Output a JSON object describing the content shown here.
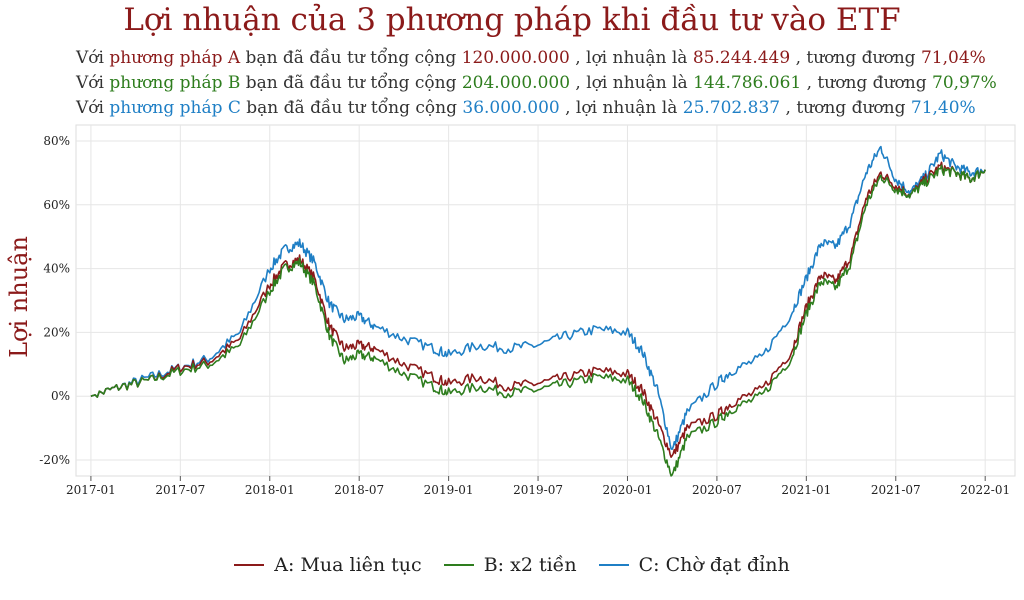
{
  "title": "Lợi nhuận của 3 phương pháp khi đầu tư vào ETF",
  "summaries": [
    {
      "prefix": "Với",
      "method": "phương pháp A",
      "t1": "bạn đã đầu tư tổng cộng",
      "invested": "120.000.000",
      "t2": ", lợi nhuận là",
      "profit": "85.244.449",
      "t3": ", tương đương",
      "pct": "71,04%"
    },
    {
      "prefix": "Với",
      "method": "phương pháp B",
      "t1": "bạn đã đầu tư tổng cộng",
      "invested": "204.000.000",
      "t2": ", lợi nhuận là",
      "profit": "144.786.061",
      "t3": ", tương đương",
      "pct": "70,97%"
    },
    {
      "prefix": "Với",
      "method": "phương pháp C",
      "t1": "bạn đã đầu tư tổng cộng",
      "invested": "36.000.000",
      "t2": ", lợi nhuận là",
      "profit": "25.702.837",
      "t3": ", tương đương",
      "pct": "71,40%"
    }
  ],
  "colors": {
    "A": "#8b1a1a",
    "B": "#2e7d1e",
    "C": "#1f7fc5"
  },
  "chart_data": {
    "type": "line",
    "ylabel": "Lợi nhuận",
    "xlabel": "",
    "x_ticks": [
      "2017-01",
      "2017-07",
      "2018-01",
      "2018-07",
      "2019-01",
      "2019-07",
      "2020-01",
      "2020-07",
      "2021-01",
      "2021-07",
      "2022-01"
    ],
    "y_ticks": [
      "-20%",
      "0%",
      "20%",
      "40%",
      "60%",
      "80%"
    ],
    "y_tick_values": [
      -20,
      0,
      20,
      40,
      60,
      80
    ],
    "ylim": [
      -25,
      85
    ],
    "xlim": [
      "2016-12",
      "2022-03"
    ],
    "grid": true,
    "legend_position": "bottom",
    "x": [
      "2017-01",
      "2017-03",
      "2017-05",
      "2017-07",
      "2017-09",
      "2017-11",
      "2018-01",
      "2018-02",
      "2018-03",
      "2018-04",
      "2018-05",
      "2018-06",
      "2018-07",
      "2018-08",
      "2018-10",
      "2018-12",
      "2019-01",
      "2019-03",
      "2019-05",
      "2019-07",
      "2019-09",
      "2019-11",
      "2020-01",
      "2020-02",
      "2020-03",
      "2020-04",
      "2020-05",
      "2020-07",
      "2020-08",
      "2020-10",
      "2020-12",
      "2021-01",
      "2021-02",
      "2021-03",
      "2021-04",
      "2021-05",
      "2021-06",
      "2021-07",
      "2021-08",
      "2021-09",
      "2021-10",
      "2021-11",
      "2021-12",
      "2022-01"
    ],
    "series": [
      {
        "name": "A: Mua liên tục",
        "color": "#8b1a1a",
        "values": [
          0,
          3,
          5,
          9,
          11,
          18,
          35,
          41,
          43,
          37,
          22,
          15,
          16,
          15,
          10,
          6,
          4,
          6,
          3,
          4,
          6,
          8,
          7,
          2,
          -8,
          -19,
          -10,
          -6,
          -2,
          2,
          14,
          28,
          38,
          36,
          44,
          62,
          70,
          66,
          63,
          68,
          72,
          70,
          68,
          71
        ]
      },
      {
        "name": "B: x2 tiền",
        "color": "#2e7d1e",
        "values": [
          0,
          3,
          5,
          8,
          10,
          16,
          33,
          40,
          42,
          35,
          19,
          11,
          13,
          12,
          7,
          3,
          1,
          3,
          1,
          2,
          4,
          6,
          5,
          -1,
          -12,
          -25,
          -13,
          -8,
          -4,
          0,
          12,
          26,
          36,
          34,
          42,
          60,
          69,
          65,
          63,
          67,
          71,
          70,
          68,
          71
        ]
      },
      {
        "name": "C: Chờ đạt đỉnh",
        "color": "#1f7fc5",
        "values": [
          0,
          3,
          6,
          9,
          12,
          20,
          40,
          46,
          48,
          42,
          29,
          24,
          25,
          22,
          18,
          15,
          13,
          16,
          15,
          16,
          19,
          21,
          20,
          14,
          2,
          -17,
          -5,
          4,
          8,
          12,
          26,
          37,
          48,
          47,
          55,
          70,
          78,
          68,
          64,
          69,
          76,
          72,
          70,
          71
        ]
      }
    ]
  }
}
